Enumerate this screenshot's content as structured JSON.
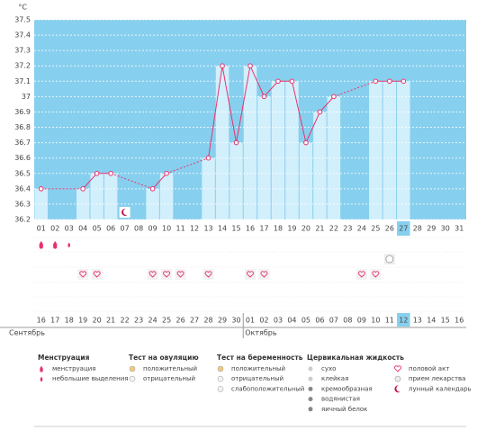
{
  "chart_data": {
    "type": "line",
    "y_label": "°C",
    "categories": [
      "01",
      "02",
      "03",
      "04",
      "05",
      "06",
      "07",
      "08",
      "09",
      "10",
      "11",
      "12",
      "13",
      "14",
      "15",
      "16",
      "17",
      "18",
      "19",
      "20",
      "21",
      "22",
      "23",
      "24",
      "25",
      "26",
      "27",
      "28",
      "29",
      "30",
      "31"
    ],
    "values": [
      36.4,
      null,
      null,
      36.4,
      36.5,
      36.5,
      null,
      null,
      36.4,
      36.5,
      null,
      null,
      36.6,
      37.2,
      36.7,
      37.2,
      37.0,
      37.1,
      37.1,
      36.7,
      36.9,
      37.0,
      null,
      null,
      37.1,
      37.1,
      37.1,
      null,
      null,
      null,
      null
    ],
    "color": "#e8336d",
    "background": "#87cfee",
    "bar_color": "#d2effc",
    "ylim": [
      36.2,
      37.5
    ],
    "yticks": [
      36.2,
      36.3,
      36.4,
      36.5,
      36.6,
      36.7,
      36.8,
      36.9,
      37,
      37.1,
      37.2,
      37.3,
      37.4,
      37.5
    ],
    "grid": true,
    "cycle_dates": [
      "16",
      "17",
      "18",
      "19",
      "20",
      "21",
      "22",
      "23",
      "24",
      "25",
      "26",
      "27",
      "28",
      "29",
      "30",
      "01",
      "02",
      "03",
      "04",
      "05",
      "06",
      "07",
      "08",
      "09",
      "10",
      "11",
      "12",
      "13",
      "14",
      "15",
      "16"
    ],
    "weekends": [
      1,
      2,
      8,
      9,
      15,
      16,
      22,
      23,
      29,
      30
    ],
    "weekend_color": "#e0245e",
    "today": 26,
    "months": [
      {
        "label": "Сентябрь",
        "start": 0
      },
      {
        "label": "Октябрь",
        "start": 15
      }
    ],
    "menstruation_days": [
      "01",
      "02"
    ],
    "spotting_days": [
      "03"
    ],
    "ovulation_negative_days": [
      "26"
    ],
    "intercourse_days": [
      "04",
      "05",
      "09",
      "10",
      "11",
      "13",
      "16",
      "17",
      "24",
      "25"
    ],
    "moon_days": [
      "07"
    ]
  },
  "legend": [
    {
      "title": "Менструация",
      "items": [
        "менструация",
        "небольшие выделения"
      ]
    },
    {
      "title": "Тест на овуляцию",
      "items": [
        "положительный",
        "отрицательный"
      ]
    },
    {
      "title": "Тест на беременность",
      "items": [
        "положительный",
        "отрицательный",
        "слабоположительный"
      ]
    },
    {
      "title": "Цервикальная жидкость",
      "items": [
        "сухо",
        "клейкая",
        "кремообразная",
        "водянистая",
        "яичный белок"
      ]
    },
    {
      "items": [
        "половой акт",
        "прием лекарства",
        "лунный календарь"
      ]
    }
  ]
}
